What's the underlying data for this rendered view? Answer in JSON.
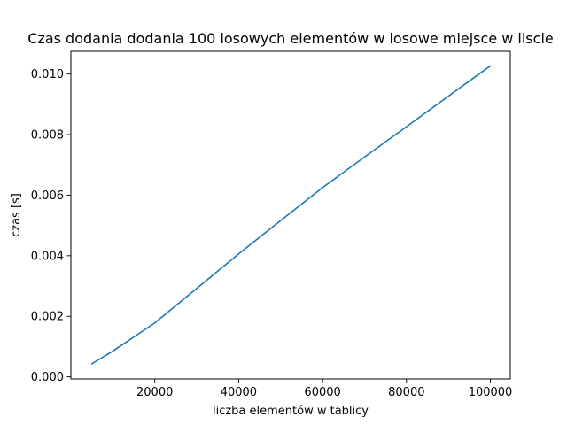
{
  "chart_data": {
    "type": "line",
    "title": "Czas dodania dodania 100 losowych elementów w losowe miejsce w liscie",
    "xlabel": "liczba elementów w tablicy",
    "ylabel": "czas [s]",
    "xlim": [
      0,
      104750
    ],
    "ylim": [
      -7e-05,
      0.01075
    ],
    "grid": false,
    "legend": "none",
    "xticks": [
      20000,
      40000,
      60000,
      80000,
      100000
    ],
    "xtick_labels": [
      "20000",
      "40000",
      "60000",
      "80000",
      "100000"
    ],
    "yticks": [
      0.0,
      0.002,
      0.004,
      0.006,
      0.008,
      0.01
    ],
    "ytick_labels": [
      "0.000",
      "0.002",
      "0.004",
      "0.006",
      "0.008",
      "0.010"
    ],
    "series": [
      {
        "name": "czas",
        "color": "#1f77b4",
        "x": [
          5000,
          10000,
          20000,
          30000,
          40000,
          50000,
          60000,
          70000,
          80000,
          90000,
          100000
        ],
        "values": [
          0.00043,
          0.00085,
          0.00178,
          0.00292,
          0.00406,
          0.00516,
          0.00625,
          0.00726,
          0.00826,
          0.00927,
          0.01027
        ]
      }
    ]
  }
}
